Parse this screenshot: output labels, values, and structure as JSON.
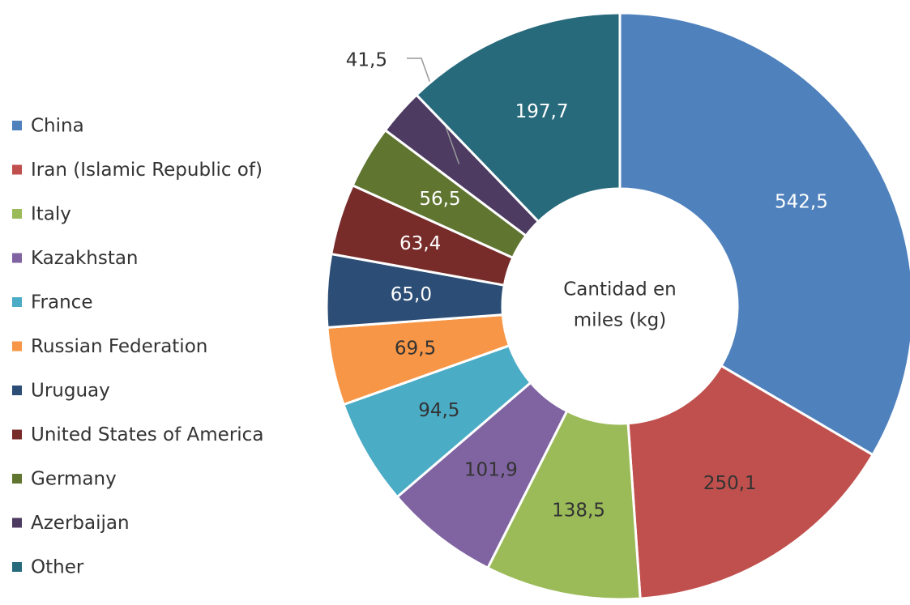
{
  "chart_data": {
    "type": "donut",
    "categories": [
      "China",
      "Iran (Islamic Republic of)",
      "Italy",
      "Kazakhstan",
      "France",
      "Russian Federation",
      "Uruguay",
      "United States of America",
      "Germany",
      "Azerbaijan",
      "Other"
    ],
    "values": [
      542.5,
      250.1,
      138.5,
      101.9,
      94.5,
      69.5,
      65.0,
      63.4,
      56.5,
      41.5,
      197.7
    ],
    "value_labels": [
      "542,5",
      "250,1",
      "138,5",
      "101,9",
      "94,5",
      "69,5",
      "65,0",
      "63,4",
      "56,5",
      "41,5",
      "197,7"
    ],
    "colors": [
      "#4f81bd",
      "#c0504d",
      "#9bbb59",
      "#8064a2",
      "#4bacc6",
      "#f79646",
      "#2c4d75",
      "#772c2a",
      "#5f7530",
      "#4d3b62",
      "#276a7c"
    ],
    "label_colors": [
      "#ffffff",
      "#333333",
      "#333333",
      "#333333",
      "#333333",
      "#333333",
      "#ffffff",
      "#ffffff",
      "#ffffff",
      "#333333",
      "#ffffff"
    ],
    "center_label": [
      "Cantidad en",
      "miles (kg)"
    ],
    "legend": "left"
  }
}
